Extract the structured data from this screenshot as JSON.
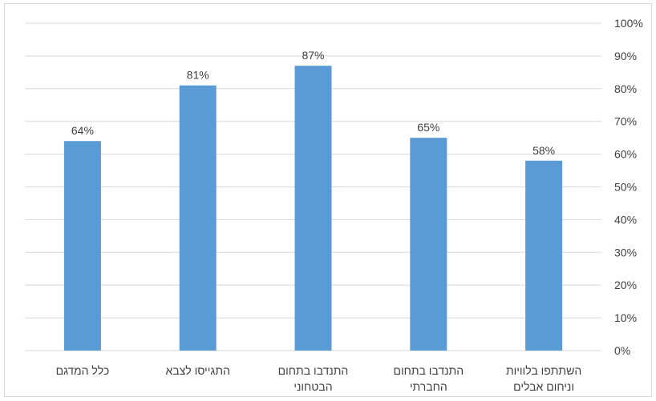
{
  "chart_data": {
    "type": "bar",
    "categories": [
      [
        "השתתפו בלוויות",
        "וניחום אבלים"
      ],
      [
        "התנדבו בתחום",
        "החברתי"
      ],
      [
        "התנדבו בתחום",
        "הבטחוני"
      ],
      [
        "התגייסו לצבא"
      ],
      [
        "כלל המדגם"
      ]
    ],
    "values": [
      58,
      65,
      87,
      81,
      64
    ],
    "data_labels": [
      "58%",
      "65%",
      "87%",
      "81%",
      "64%"
    ],
    "ylim": [
      0,
      100
    ],
    "yticks": [
      0,
      10,
      20,
      30,
      40,
      50,
      60,
      70,
      80,
      90,
      100
    ],
    "ytick_labels": [
      "0%",
      "10%",
      "20%",
      "30%",
      "40%",
      "50%",
      "60%",
      "70%",
      "80%",
      "90%",
      "100%"
    ],
    "y_axis_side": "right",
    "grid": true,
    "bar_color": "#5b9bd5",
    "grid_color": "#d9d9d9"
  }
}
